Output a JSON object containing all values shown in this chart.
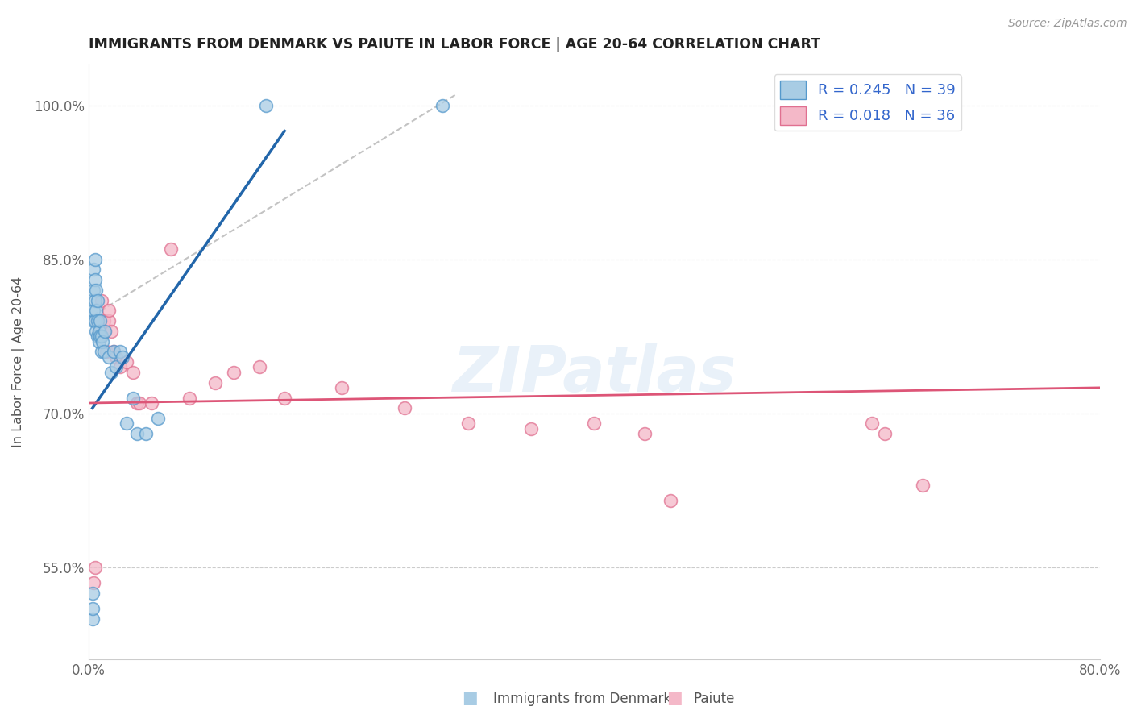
{
  "title": "IMMIGRANTS FROM DENMARK VS PAIUTE IN LABOR FORCE | AGE 20-64 CORRELATION CHART",
  "source_text": "Source: ZipAtlas.com",
  "ylabel": "In Labor Force | Age 20-64",
  "xlim": [
    0.0,
    0.8
  ],
  "ylim": [
    0.46,
    1.04
  ],
  "yticks": [
    0.55,
    0.7,
    0.85,
    1.0
  ],
  "ytick_labels": [
    "55.0%",
    "70.0%",
    "85.0%",
    "100.0%"
  ],
  "xticks": [
    0.0,
    0.8
  ],
  "xtick_labels": [
    "0.0%",
    "80.0%"
  ],
  "watermark": "ZIPatlas",
  "blue_color": "#a8cce4",
  "pink_color": "#f4b8c8",
  "blue_edge_color": "#5599cc",
  "pink_edge_color": "#e07090",
  "blue_line_color": "#2266aa",
  "pink_line_color": "#dd5577",
  "blue_R": 0.245,
  "blue_N": 39,
  "pink_R": 0.018,
  "pink_N": 36,
  "blue_scatter_x": [
    0.003,
    0.003,
    0.004,
    0.004,
    0.004,
    0.004,
    0.005,
    0.005,
    0.005,
    0.005,
    0.006,
    0.006,
    0.006,
    0.007,
    0.007,
    0.007,
    0.008,
    0.008,
    0.009,
    0.009,
    0.01,
    0.01,
    0.011,
    0.012,
    0.013,
    0.016,
    0.018,
    0.02,
    0.022,
    0.025,
    0.027,
    0.03,
    0.035,
    0.038,
    0.045,
    0.055,
    0.003,
    0.14,
    0.28
  ],
  "blue_scatter_y": [
    0.5,
    0.51,
    0.79,
    0.8,
    0.82,
    0.84,
    0.79,
    0.81,
    0.83,
    0.85,
    0.78,
    0.8,
    0.82,
    0.79,
    0.81,
    0.775,
    0.78,
    0.77,
    0.775,
    0.79,
    0.76,
    0.775,
    0.77,
    0.76,
    0.78,
    0.755,
    0.74,
    0.76,
    0.745,
    0.76,
    0.755,
    0.69,
    0.715,
    0.68,
    0.68,
    0.695,
    0.525,
    1.0,
    1.0
  ],
  "pink_scatter_x": [
    0.004,
    0.005,
    0.007,
    0.008,
    0.009,
    0.01,
    0.012,
    0.013,
    0.014,
    0.016,
    0.016,
    0.018,
    0.02,
    0.022,
    0.025,
    0.03,
    0.035,
    0.038,
    0.04,
    0.05,
    0.065,
    0.08,
    0.1,
    0.115,
    0.135,
    0.155,
    0.2,
    0.25,
    0.3,
    0.35,
    0.4,
    0.44,
    0.46,
    0.62,
    0.63,
    0.66
  ],
  "pink_scatter_y": [
    0.535,
    0.55,
    0.79,
    0.78,
    0.79,
    0.81,
    0.79,
    0.78,
    0.76,
    0.79,
    0.8,
    0.78,
    0.76,
    0.755,
    0.745,
    0.75,
    0.74,
    0.71,
    0.71,
    0.71,
    0.86,
    0.715,
    0.73,
    0.74,
    0.745,
    0.715,
    0.725,
    0.705,
    0.69,
    0.685,
    0.69,
    0.68,
    0.615,
    0.69,
    0.68,
    0.63
  ],
  "blue_line_x": [
    0.003,
    0.155
  ],
  "blue_line_y": [
    0.705,
    0.975
  ],
  "pink_line_x": [
    0.0,
    0.8
  ],
  "pink_line_y": [
    0.71,
    0.725
  ],
  "dash_line_x": [
    0.003,
    0.29
  ],
  "dash_line_y": [
    0.795,
    1.01
  ],
  "background_color": "#ffffff",
  "grid_color": "#cccccc"
}
